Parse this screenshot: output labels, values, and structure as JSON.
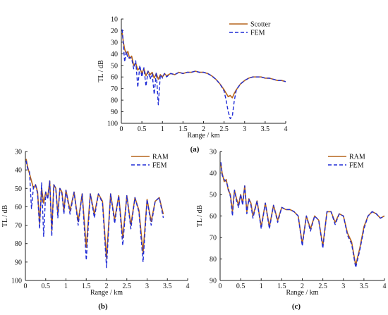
{
  "figure": {
    "panels": [
      {
        "label": "(a)"
      },
      {
        "label": "(b)"
      },
      {
        "label": "(c)"
      }
    ]
  },
  "chart_data": [
    {
      "type": "line",
      "panel_label": "(a)",
      "xlabel": "Range / km",
      "ylabel": "TL / dB",
      "xlim": [
        0,
        4
      ],
      "ylim": [
        10,
        100
      ],
      "y_inverted": true,
      "xticks": [
        0,
        0.5,
        1,
        1.5,
        2,
        2.5,
        3,
        3.5,
        4
      ],
      "yticks": [
        10,
        20,
        30,
        40,
        50,
        60,
        70,
        80,
        90,
        100
      ],
      "grid": false,
      "legend_position": "top-right",
      "series": [
        {
          "name": "Scotter",
          "color": "#b5651d",
          "style": "solid",
          "x": [
            0.02,
            0.05,
            0.08,
            0.12,
            0.16,
            0.2,
            0.25,
            0.3,
            0.35,
            0.4,
            0.45,
            0.5,
            0.55,
            0.6,
            0.65,
            0.7,
            0.75,
            0.8,
            0.85,
            0.9,
            0.95,
            1.0,
            1.05,
            1.1,
            1.2,
            1.3,
            1.4,
            1.5,
            1.6,
            1.7,
            1.8,
            1.9,
            2.0,
            2.1,
            2.2,
            2.3,
            2.4,
            2.5,
            2.55,
            2.6,
            2.65,
            2.7,
            2.75,
            2.8,
            2.9,
            3.0,
            3.1,
            3.2,
            3.3,
            3.4,
            3.5,
            3.6,
            3.7,
            3.8,
            3.9,
            4.0
          ],
          "y": [
            22,
            30,
            36,
            40,
            38,
            44,
            42,
            50,
            48,
            54,
            52,
            57,
            53,
            59,
            55,
            58,
            56,
            61,
            57,
            62,
            58,
            60,
            57,
            59,
            57,
            58,
            56,
            57,
            56,
            56,
            55,
            56,
            56,
            57,
            59,
            62,
            66,
            71,
            74,
            77,
            76,
            78,
            74,
            71,
            66,
            63,
            61,
            60,
            60,
            60,
            61,
            61,
            62,
            63,
            63,
            64
          ]
        },
        {
          "name": "FEM",
          "color": "#1f2bd6",
          "style": "dashed",
          "x": [
            0.02,
            0.05,
            0.08,
            0.12,
            0.16,
            0.2,
            0.25,
            0.3,
            0.35,
            0.4,
            0.45,
            0.5,
            0.55,
            0.6,
            0.65,
            0.7,
            0.75,
            0.8,
            0.85,
            0.9,
            0.95,
            1.0,
            1.05,
            1.1,
            1.2,
            1.3,
            1.4,
            1.5,
            1.6,
            1.7,
            1.8,
            1.9,
            2.0,
            2.1,
            2.2,
            2.3,
            2.4,
            2.5,
            2.55,
            2.6,
            2.65,
            2.7,
            2.75,
            2.8,
            2.9,
            3.0,
            3.1,
            3.2,
            3.3,
            3.4,
            3.5,
            3.6,
            3.7,
            3.8,
            3.9,
            4.0
          ],
          "y": [
            19,
            32,
            47,
            38,
            44,
            43,
            44,
            53,
            46,
            69,
            50,
            60,
            52,
            68,
            55,
            62,
            57,
            75,
            56,
            84,
            58,
            61,
            57,
            60,
            57,
            58,
            56,
            57,
            56,
            56,
            55,
            56,
            56,
            57,
            59,
            62,
            66,
            72,
            80,
            90,
            96,
            94,
            80,
            71,
            66,
            63,
            61,
            60,
            60,
            60,
            61,
            61,
            62,
            63,
            63,
            64
          ]
        }
      ]
    },
    {
      "type": "line",
      "panel_label": "(b)",
      "xlabel": "Range / km",
      "ylabel": "TL / dB",
      "xlim": [
        0,
        4
      ],
      "ylim": [
        30,
        100
      ],
      "y_inverted": true,
      "xticks": [
        0,
        0.5,
        1,
        1.5,
        2,
        2.5,
        3,
        3.5,
        4
      ],
      "yticks": [
        30,
        40,
        50,
        60,
        70,
        80,
        90,
        100
      ],
      "grid": false,
      "legend_position": "top-right",
      "series": [
        {
          "name": "RAM",
          "color": "#b5651d",
          "style": "solid",
          "x": [
            0.02,
            0.05,
            0.1,
            0.15,
            0.2,
            0.25,
            0.3,
            0.35,
            0.4,
            0.45,
            0.5,
            0.55,
            0.6,
            0.65,
            0.7,
            0.75,
            0.8,
            0.85,
            0.9,
            0.95,
            1.0,
            1.1,
            1.2,
            1.3,
            1.4,
            1.5,
            1.6,
            1.7,
            1.8,
            1.9,
            2.0,
            2.1,
            2.2,
            2.3,
            2.4,
            2.5,
            2.6,
            2.7,
            2.8,
            2.9,
            3.0,
            3.1,
            3.2,
            3.3,
            3.4
          ],
          "y": [
            34,
            38,
            42,
            46,
            50,
            48,
            52,
            69,
            50,
            58,
            52,
            55,
            46,
            73,
            48,
            50,
            64,
            50,
            52,
            62,
            51,
            62,
            52,
            68,
            53,
            82,
            53,
            64,
            53,
            57,
            88,
            53,
            67,
            54,
            77,
            54,
            70,
            55,
            62,
            85,
            56,
            68,
            57,
            55,
            64
          ]
        },
        {
          "name": "FEM",
          "color": "#1f2bd6",
          "style": "dashed",
          "x": [
            0.02,
            0.05,
            0.1,
            0.15,
            0.2,
            0.25,
            0.3,
            0.35,
            0.4,
            0.45,
            0.5,
            0.55,
            0.6,
            0.65,
            0.7,
            0.75,
            0.8,
            0.85,
            0.9,
            0.95,
            1.0,
            1.1,
            1.2,
            1.3,
            1.4,
            1.5,
            1.6,
            1.7,
            1.8,
            1.9,
            2.0,
            2.1,
            2.2,
            2.3,
            2.4,
            2.5,
            2.6,
            2.7,
            2.8,
            2.9,
            3.0,
            3.1,
            3.2,
            3.3,
            3.4
          ],
          "y": [
            35,
            39,
            41,
            61,
            49,
            48,
            53,
            72,
            47,
            76,
            52,
            56,
            46,
            76,
            48,
            50,
            66,
            50,
            53,
            64,
            51,
            64,
            52,
            70,
            53,
            89,
            53,
            66,
            53,
            58,
            93,
            53,
            69,
            54,
            81,
            54,
            72,
            55,
            63,
            90,
            56,
            70,
            57,
            55,
            66
          ]
        }
      ]
    },
    {
      "type": "line",
      "panel_label": "(c)",
      "xlabel": "Range / km",
      "ylabel": "TL / dB",
      "xlim": [
        0,
        4
      ],
      "ylim": [
        30,
        90
      ],
      "y_inverted": true,
      "xticks": [
        0,
        0.5,
        1,
        1.5,
        2,
        2.5,
        3,
        3.5,
        4
      ],
      "yticks": [
        30,
        40,
        50,
        60,
        70,
        80,
        90
      ],
      "grid": false,
      "legend_position": "top-right",
      "series": [
        {
          "name": "RAM",
          "color": "#b5651d",
          "style": "solid",
          "x": [
            0.02,
            0.05,
            0.1,
            0.15,
            0.2,
            0.25,
            0.3,
            0.35,
            0.4,
            0.45,
            0.5,
            0.55,
            0.6,
            0.65,
            0.7,
            0.75,
            0.8,
            0.9,
            1.0,
            1.1,
            1.2,
            1.3,
            1.4,
            1.5,
            1.6,
            1.7,
            1.8,
            1.9,
            2.0,
            2.1,
            2.2,
            2.3,
            2.4,
            2.5,
            2.6,
            2.7,
            2.8,
            2.9,
            3.0,
            3.1,
            3.2,
            3.3,
            3.4,
            3.5,
            3.6,
            3.7,
            3.8,
            3.9,
            4.0
          ],
          "y": [
            36,
            40,
            44,
            43,
            48,
            50,
            58,
            48,
            52,
            55,
            50,
            54,
            46,
            58,
            52,
            54,
            60,
            53,
            65,
            54,
            65,
            55,
            62,
            56,
            57,
            57,
            58,
            60,
            73,
            60,
            66,
            60,
            62,
            74,
            58,
            58,
            63,
            59,
            60,
            68,
            72,
            83,
            75,
            65,
            60,
            58,
            59,
            61,
            60
          ]
        },
        {
          "name": "FEM",
          "color": "#1f2bd6",
          "style": "dashed",
          "x": [
            0.02,
            0.05,
            0.1,
            0.15,
            0.2,
            0.25,
            0.3,
            0.35,
            0.4,
            0.45,
            0.5,
            0.55,
            0.6,
            0.65,
            0.7,
            0.75,
            0.8,
            0.9,
            1.0,
            1.1,
            1.2,
            1.3,
            1.4,
            1.5,
            1.6,
            1.7,
            1.8,
            1.9,
            2.0,
            2.1,
            2.2,
            2.3,
            2.4,
            2.5,
            2.6,
            2.7,
            2.8,
            2.9,
            3.0,
            3.1,
            3.2,
            3.3,
            3.4,
            3.5,
            3.6,
            3.7,
            3.8,
            3.9,
            4.0
          ],
          "y": [
            35,
            41,
            43,
            44,
            47,
            51,
            60,
            48,
            53,
            56,
            50,
            55,
            46,
            59,
            52,
            55,
            61,
            53,
            66,
            54,
            66,
            55,
            63,
            56,
            57,
            57,
            58,
            60,
            74,
            60,
            67,
            60,
            62,
            75,
            58,
            58,
            64,
            59,
            60,
            69,
            73,
            84,
            76,
            66,
            60,
            58,
            59,
            61,
            60
          ]
        }
      ]
    }
  ]
}
